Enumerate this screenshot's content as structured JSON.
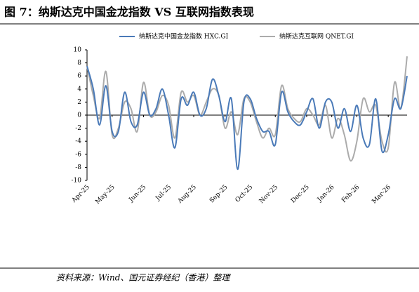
{
  "chart_data": {
    "type": "line",
    "title": "图 7：纳斯达克中国金龙指数 VS 互联网指数表现",
    "source": "资料来源：Wind、国元证券经纪（香港）整理",
    "categories": [
      "Apr-25",
      null,
      null,
      null,
      "May-25",
      null,
      null,
      null,
      null,
      "Jun-25",
      null,
      null,
      null,
      "Jul-25",
      null,
      null,
      null,
      "Aug-25",
      null,
      null,
      null,
      null,
      "Sep-25",
      null,
      null,
      null,
      "Oct-25",
      null,
      null,
      null,
      "Nov-25",
      null,
      null,
      null,
      null,
      "Dec-25",
      null,
      null,
      null,
      "Jan-26",
      null,
      null,
      null,
      "Feb-26",
      null,
      null,
      null,
      null,
      "Mar-26",
      null,
      null,
      null
    ],
    "series": [
      {
        "name": "纳斯达克中国金龙指数 HXC.GI",
        "color": "#4a7ab8",
        "values": [
          7.5,
          4,
          -1.5,
          4.5,
          -2.5,
          -2.5,
          3.5,
          -1,
          -1.5,
          3.5,
          0,
          1,
          4,
          0,
          -5,
          2.5,
          1.5,
          3.5,
          0,
          1,
          5.5,
          3,
          -1,
          2.5,
          -8.3,
          2,
          2.5,
          -0.5,
          -2.5,
          -2.5,
          -4.5,
          3.5,
          0.5,
          -1,
          -1.5,
          0.5,
          2.5,
          -2,
          2,
          2,
          -2,
          1,
          -2.5,
          1.5,
          -3.5,
          -4.5,
          2.5,
          -5.5,
          -3,
          2.5,
          1,
          6
        ]
      },
      {
        "name": "纳斯达克互联网 QNET.GI",
        "color": "#ababab",
        "values": [
          7.5,
          3,
          -0.5,
          6.7,
          -3,
          -2,
          2,
          1,
          -2.5,
          5,
          0,
          0.5,
          3,
          1.5,
          -3.5,
          3.5,
          2,
          3,
          0,
          2,
          4,
          3,
          -2,
          0.5,
          -3,
          2.5,
          2,
          -1,
          -3.5,
          -2,
          -3,
          4.5,
          1,
          -0.5,
          -1,
          1,
          0,
          -1.5,
          1.5,
          -3.5,
          -0.5,
          -3,
          -7,
          -4,
          2.5,
          0.5,
          1.5,
          -4,
          -5,
          5,
          1,
          9
        ]
      }
    ],
    "ylim": [
      -10,
      10
    ],
    "yticks": [
      -10,
      -8,
      -6,
      -4,
      -2,
      0,
      2,
      4,
      6,
      8,
      10
    ],
    "grid": false,
    "legend": "top"
  }
}
